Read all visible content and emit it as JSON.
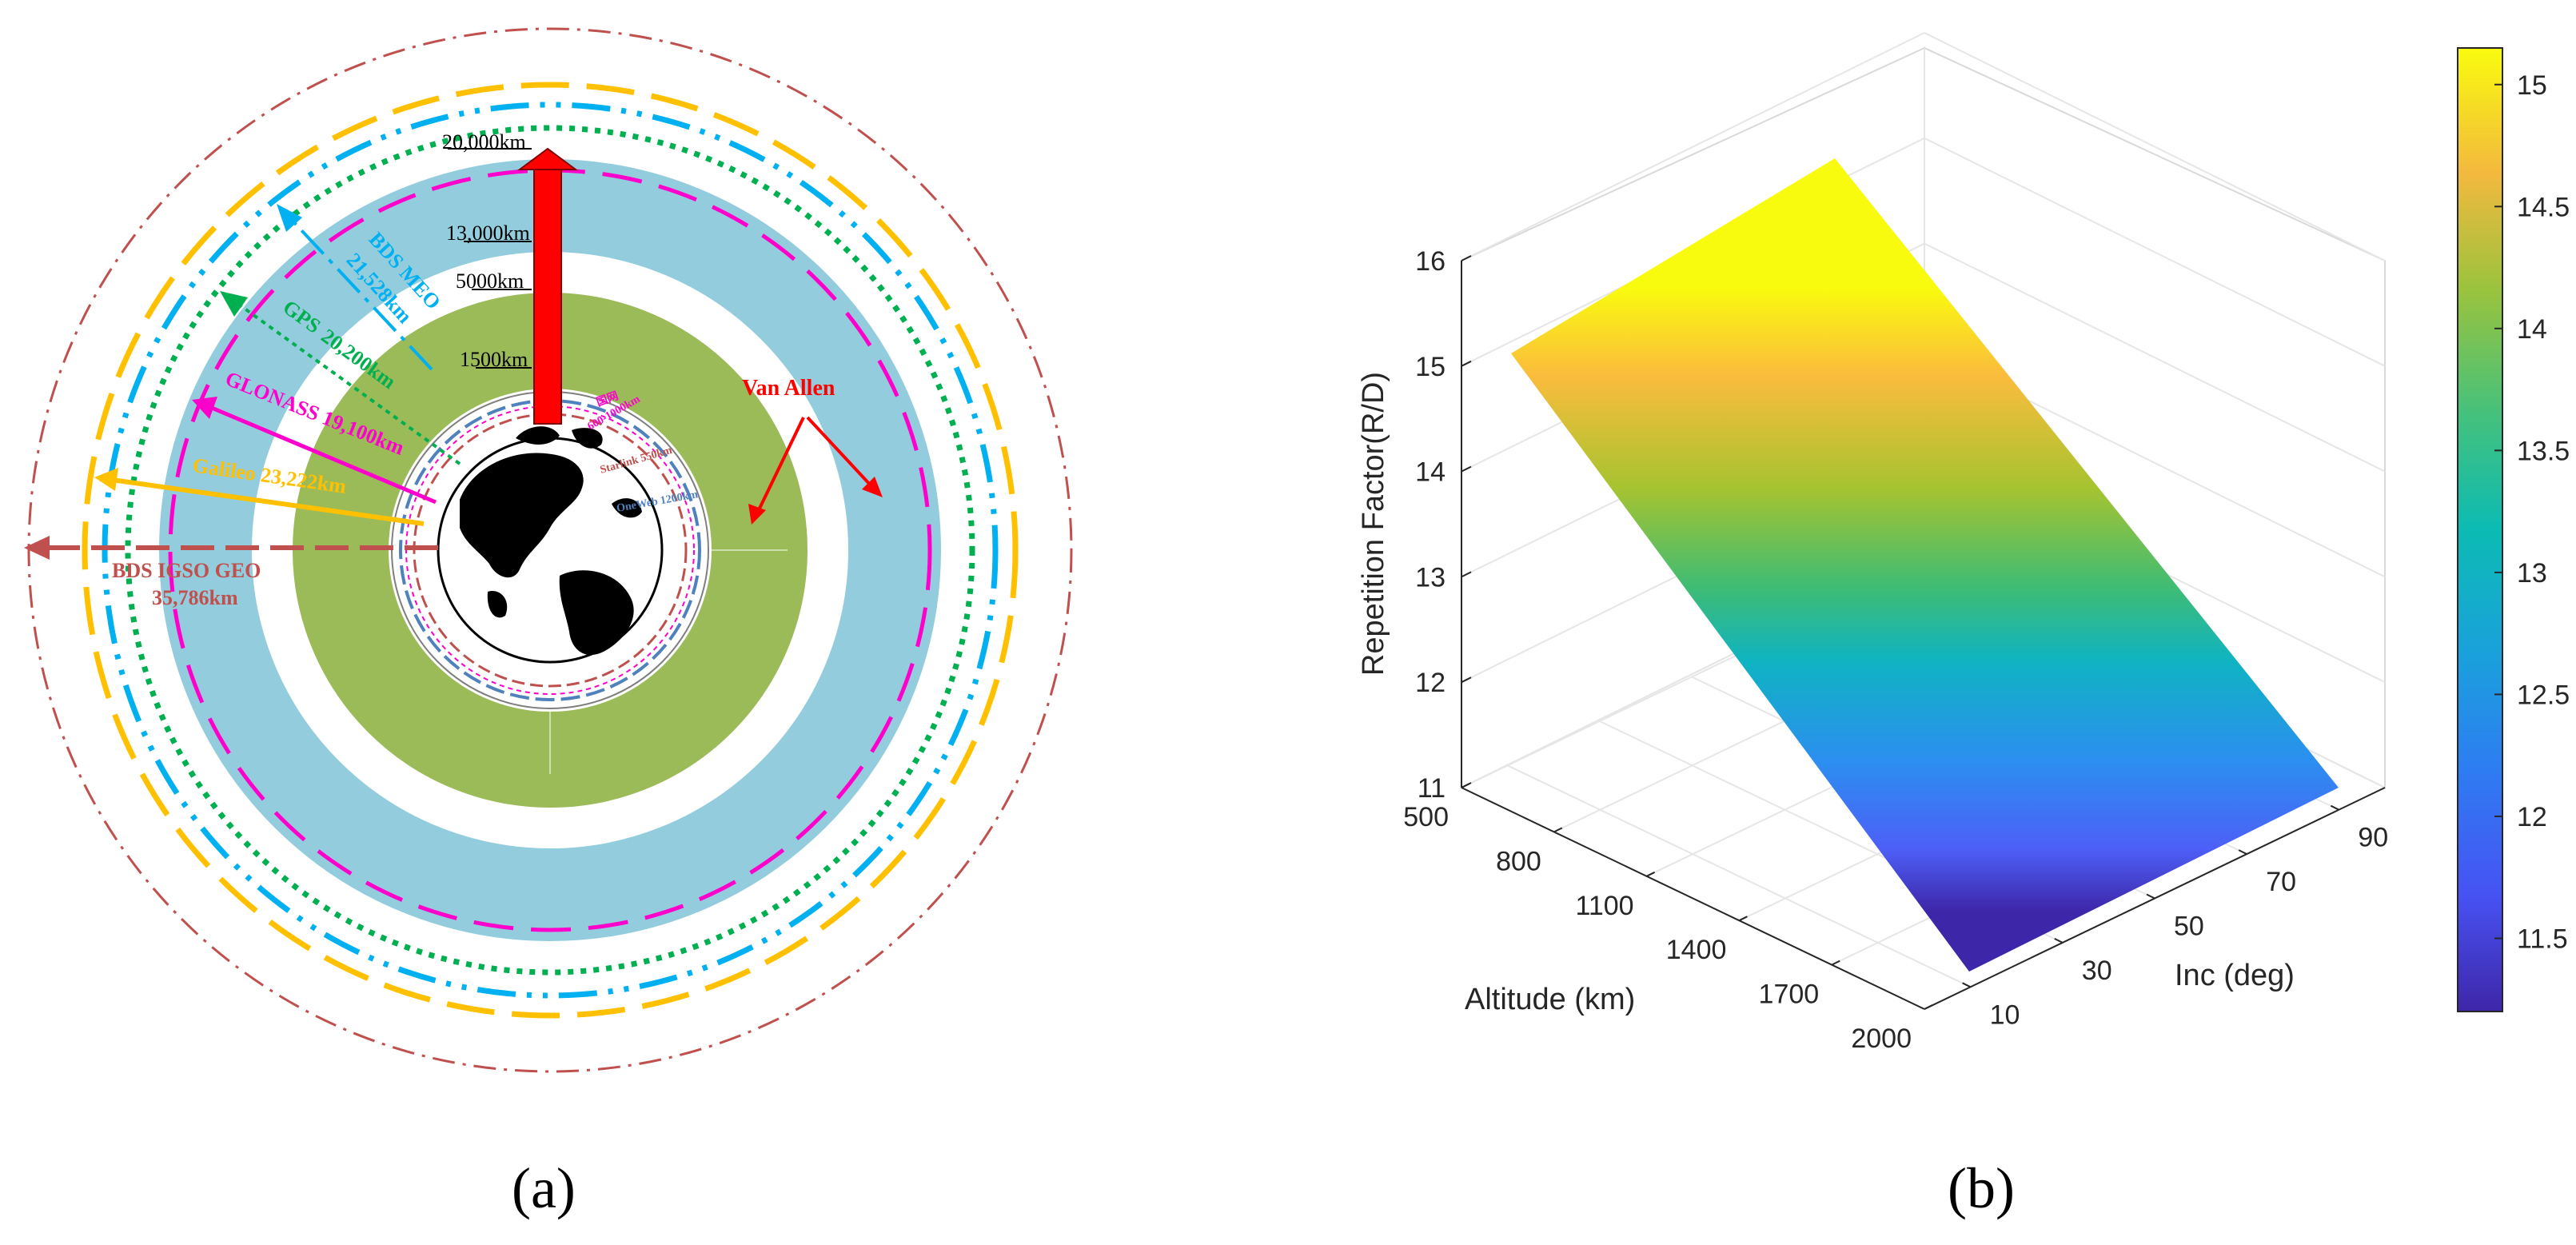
{
  "colors": {
    "geo": "#c0504d",
    "galileo": "#ffc000",
    "bds_meo": "#00b0f0",
    "gps": "#00b050",
    "glonass": "#ff00cc",
    "van_allen": "#ff0000",
    "outer_belt": "#93cddd",
    "inner_belt": "#9bbb59",
    "oneweb": "#4f81bd",
    "starlink": "#c0504d"
  },
  "panels": {
    "a_label": "(a)",
    "b_label": "(b)"
  },
  "orbit_diagram": {
    "altitude_markers": [
      "20,000km",
      "13,000km",
      "5000km",
      "1500km"
    ],
    "constellations": {
      "bds_meo_name": "BDS MEO",
      "bds_meo_alt": "21,528km",
      "gps_name": "GPS",
      "gps_alt": "20,200km",
      "glonass": "GLONASS  19,100km",
      "galileo": "Galileo  23,222km",
      "geo_line1": "BDS IGSO   GEO",
      "geo_line2": "35,786km"
    },
    "van_allen": "Van Allen",
    "leo_labels": {
      "guowang": "国网",
      "guowang_alt": "600-1000km",
      "starlink": "Starlink 550km",
      "oneweb": "OneWeb 1200km"
    }
  },
  "chart_data": {
    "type": "surface3d",
    "title": "",
    "zlabel": "Repetition Factor(R/D)",
    "xlabel": "Altitude (km)",
    "ylabel": "Inc (deg)",
    "x_ticks": [
      "500",
      "800",
      "1100",
      "1400",
      "1700",
      "2000"
    ],
    "y_ticks": [
      "10",
      "30",
      "50",
      "70",
      "90"
    ],
    "z_ticks": [
      "11",
      "12",
      "13",
      "14",
      "15",
      "16"
    ],
    "xlim": [
      500,
      2000
    ],
    "ylim": [
      0,
      100
    ],
    "zlim": [
      11,
      16
    ],
    "surface": {
      "altitude_km": [
        500,
        2000
      ],
      "repetition_factor": [
        15.15,
        11.2
      ],
      "note_inclination_dependence": "nearly constant along Inc"
    },
    "colorbar": {
      "ticks": [
        "11.5",
        "12",
        "12.5",
        "13",
        "13.5",
        "14",
        "14.5",
        "15"
      ],
      "range": [
        11.2,
        15.15
      ],
      "colormap": "parula"
    }
  }
}
